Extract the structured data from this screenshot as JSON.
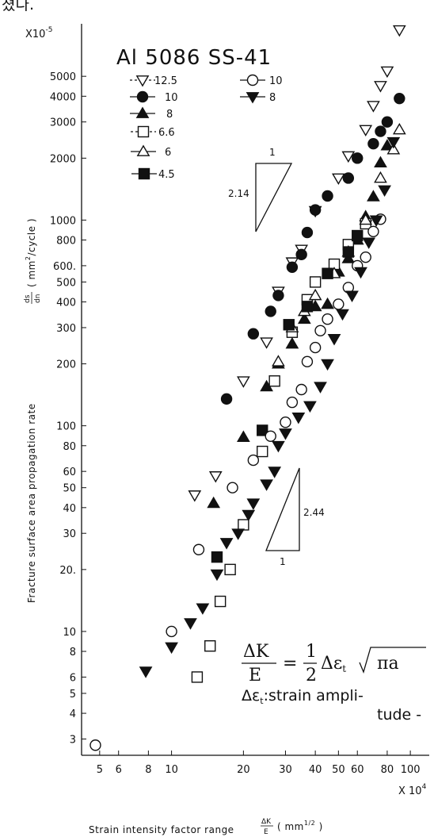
{
  "top_fragment": "쳤다.",
  "chart_data": {
    "type": "scatter",
    "title": "Al 5086 SS-41",
    "xlabel": "Strain intensity factor range",
    "xlabel_fraction": {
      "num": "ΔK",
      "den": "E"
    },
    "xlabel_unit": "( mm",
    "xlabel_unit_exp": "1/2",
    "xlabel_unit_close": " )",
    "xscale_label": "X 10",
    "xscale_exp": "4",
    "ylabel": "Fracture surface area propagation rate",
    "ylabel_fraction": {
      "num": "ds",
      "den": "dn"
    },
    "ylabel_unit": "( mm",
    "ylabel_unit_exp": "2",
    "ylabel_unit_close": "/cycle )",
    "yscale_label": "X10",
    "yscale_exp": "-5",
    "xscale": "log",
    "yscale": "log",
    "xlim": [
      4.2,
      120
    ],
    "ylim": [
      2.5,
      9000
    ],
    "x_ticks": [
      {
        "v": 5,
        "t": "5"
      },
      {
        "v": 6,
        "t": "6"
      },
      {
        "v": 8,
        "t": "8"
      },
      {
        "v": 10,
        "t": "10"
      },
      {
        "v": 20,
        "t": "20"
      },
      {
        "v": 30,
        "t": "30"
      },
      {
        "v": 40,
        "t": "40"
      },
      {
        "v": 50,
        "t": "50"
      },
      {
        "v": 60,
        "t": "60"
      },
      {
        "v": 80,
        "t": "80"
      },
      {
        "v": 100,
        "t": "100"
      }
    ],
    "y_ticks": [
      {
        "v": 3,
        "t": "3"
      },
      {
        "v": 4,
        "t": "4"
      },
      {
        "v": 5,
        "t": "5"
      },
      {
        "v": 6,
        "t": "6"
      },
      {
        "v": 8,
        "t": "8"
      },
      {
        "v": 10,
        "t": "10"
      },
      {
        "v": 20,
        "t": "20."
      },
      {
        "v": 30,
        "t": "30"
      },
      {
        "v": 40,
        "t": "40"
      },
      {
        "v": 50,
        "t": "50"
      },
      {
        "v": 60,
        "t": "60"
      },
      {
        "v": 80,
        "t": "80"
      },
      {
        "v": 100,
        "t": "100"
      },
      {
        "v": 200,
        "t": "200"
      },
      {
        "v": 300,
        "t": "300"
      },
      {
        "v": 400,
        "t": "400"
      },
      {
        "v": 500,
        "t": "500"
      },
      {
        "v": 600,
        "t": "600."
      },
      {
        "v": 800,
        "t": "800"
      },
      {
        "v": 1000,
        "t": "1000"
      },
      {
        "v": 2000,
        "t": "2000"
      },
      {
        "v": 3000,
        "t": "3000"
      },
      {
        "v": 4000,
        "t": "4000"
      },
      {
        "v": 5000,
        "t": "5000"
      }
    ],
    "grid": false,
    "legend_position": "top-left",
    "series": [
      {
        "name": "12.5",
        "material": "Al 5086",
        "marker": "triangle-down-open",
        "points": [
          [
            12.5,
            46
          ],
          [
            15.3,
            57
          ],
          [
            20,
            165
          ],
          [
            25,
            255
          ],
          [
            28,
            450
          ],
          [
            32,
            625
          ],
          [
            35,
            720
          ],
          [
            40,
            1110
          ],
          [
            50,
            1600
          ],
          [
            55,
            2050
          ],
          [
            65,
            2750
          ],
          [
            70,
            3600
          ],
          [
            75,
            4500
          ],
          [
            80,
            5300
          ],
          [
            90,
            8400
          ]
        ]
      },
      {
        "name": "10",
        "material": "Al 5086",
        "marker": "circle-filled",
        "points": [
          [
            17,
            135
          ],
          [
            22,
            280
          ],
          [
            26,
            360
          ],
          [
            28,
            430
          ],
          [
            32,
            590
          ],
          [
            35,
            680
          ],
          [
            37,
            870
          ],
          [
            40,
            1120
          ],
          [
            45,
            1310
          ],
          [
            55,
            1600
          ],
          [
            60,
            2000
          ],
          [
            70,
            2350
          ],
          [
            75,
            2700
          ],
          [
            80,
            3000
          ],
          [
            90,
            3900
          ]
        ]
      },
      {
        "name": "8",
        "material": "Al 5086",
        "marker": "triangle-up-filled",
        "points": [
          [
            15,
            42
          ],
          [
            20,
            88
          ],
          [
            25,
            155
          ],
          [
            28,
            200
          ],
          [
            32,
            250
          ],
          [
            36,
            330
          ],
          [
            40,
            380
          ],
          [
            45,
            390
          ],
          [
            50,
            560
          ],
          [
            55,
            650
          ],
          [
            60,
            800
          ],
          [
            65,
            1040
          ],
          [
            70,
            1300
          ],
          [
            75,
            1900
          ],
          [
            80,
            2300
          ]
        ]
      },
      {
        "name": "6.6",
        "material": "Al 5086",
        "marker": "square-open",
        "points": [
          [
            12.8,
            6
          ],
          [
            14.5,
            8.5
          ],
          [
            16,
            14
          ],
          [
            17.6,
            20
          ],
          [
            20,
            33
          ],
          [
            24,
            75
          ],
          [
            27,
            165
          ],
          [
            32,
            285
          ],
          [
            37,
            410
          ],
          [
            40,
            500
          ],
          [
            48,
            610
          ],
          [
            55,
            760
          ],
          [
            65,
            960
          ]
        ]
      },
      {
        "name": "6",
        "material": "Al 5086",
        "marker": "triangle-up-open",
        "points": [
          [
            28,
            205
          ],
          [
            32,
            300
          ],
          [
            36,
            360
          ],
          [
            40,
            430
          ],
          [
            48,
            550
          ],
          [
            55,
            700
          ],
          [
            65,
            1000
          ],
          [
            75,
            1600
          ],
          [
            85,
            2200
          ],
          [
            90,
            2750
          ]
        ]
      },
      {
        "name": "4.5",
        "material": "Al 5086",
        "marker": "square-filled",
        "points": [
          [
            15.5,
            23
          ],
          [
            24,
            95
          ],
          [
            31,
            310
          ],
          [
            37,
            380
          ],
          [
            45,
            550
          ],
          [
            55,
            700
          ],
          [
            60,
            840
          ]
        ]
      },
      {
        "name": "10",
        "material": "SS-41",
        "marker": "circle-open",
        "points": [
          [
            4.8,
            2.8
          ],
          [
            10,
            10
          ],
          [
            13,
            25
          ],
          [
            18,
            50
          ],
          [
            22,
            68
          ],
          [
            26,
            89
          ],
          [
            30,
            104
          ],
          [
            32,
            130
          ],
          [
            35,
            150
          ],
          [
            37,
            205
          ],
          [
            40,
            240
          ],
          [
            42,
            290
          ],
          [
            45,
            330
          ],
          [
            50,
            390
          ],
          [
            55,
            470
          ],
          [
            60,
            600
          ],
          [
            65,
            660
          ],
          [
            70,
            880
          ],
          [
            75,
            1010
          ]
        ]
      },
      {
        "name": "8",
        "material": "SS-41",
        "marker": "triangle-down-filled",
        "points": [
          [
            7.8,
            6.4
          ],
          [
            10,
            8.4
          ],
          [
            12,
            11
          ],
          [
            13.5,
            13
          ],
          [
            15.5,
            19
          ],
          [
            17,
            27
          ],
          [
            19,
            30
          ],
          [
            21,
            37
          ],
          [
            22,
            42
          ],
          [
            25,
            52
          ],
          [
            27,
            60
          ],
          [
            28,
            80
          ],
          [
            30,
            92
          ],
          [
            34,
            110
          ],
          [
            38,
            125
          ],
          [
            42,
            155
          ],
          [
            45,
            200
          ],
          [
            48,
            265
          ],
          [
            52,
            350
          ],
          [
            57,
            430
          ],
          [
            62,
            560
          ],
          [
            67,
            780
          ],
          [
            72,
            1000
          ],
          [
            78,
            1400
          ],
          [
            85,
            2400
          ]
        ]
      }
    ],
    "annotations": {
      "slope_upper": {
        "value": "2.14",
        "base": "1"
      },
      "slope_lower": {
        "value": "2.44",
        "base": "1"
      },
      "formula_lhs_num": "ΔK",
      "formula_lhs_den": "E",
      "formula_eq": "=",
      "formula_half_num": "1",
      "formula_half_den": "2",
      "formula_rhs": "Δε",
      "formula_rhs_sub": "t",
      "formula_root": "πa",
      "strain_line1": "Δε",
      "strain_line1_sub": "t",
      "strain_line1_rest": ":strain ampli-",
      "strain_line2": "tude -"
    }
  }
}
